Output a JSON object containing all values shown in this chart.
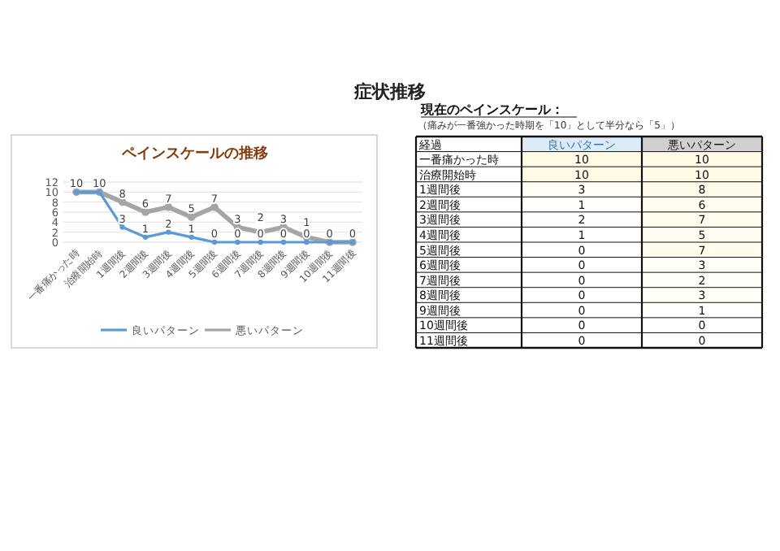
{
  "chart_data": [
    {
      "type": "line",
      "title": "症状推移",
      "subtitle": "ペインスケールの推移",
      "categories": [
        "一番痛かった時",
        "治療開始時",
        "1週間後",
        "2週間後",
        "3週間後",
        "4週間後",
        "5週間後",
        "6週間後",
        "7週間後",
        "8週間後",
        "9週間後",
        "10週間後",
        "11週間後"
      ],
      "series": [
        {
          "name": "良いパターン",
          "color": "#5b9bd5",
          "values": [
            10,
            10,
            3,
            1,
            2,
            1,
            0,
            0,
            0,
            0,
            0,
            0,
            0
          ],
          "value_labels": [
            "10",
            "10",
            "3",
            "1",
            "2",
            "1",
            "0",
            "0",
            "0",
            "0",
            "0",
            "0",
            "0"
          ]
        },
        {
          "name": "悪いパターン",
          "color": "#a5a5a5",
          "values": [
            10,
            10,
            8,
            6,
            7,
            5,
            7,
            3,
            2,
            3,
            1,
            0,
            0
          ],
          "value_labels": [
            null,
            null,
            "8",
            "6",
            "7",
            "5",
            "7",
            "3",
            "2",
            "3",
            "1",
            null,
            null
          ]
        }
      ],
      "ylim": [
        0,
        12
      ],
      "yticks": [
        0,
        2,
        4,
        6,
        8,
        10,
        12
      ],
      "grid": "y",
      "legend": "bottom",
      "marker": "circle",
      "line_style": "solid"
    },
    {
      "type": "heatmap",
      "title": "現在のペインスケール：",
      "subtitle": "（痛みが一番強かった時期を「10」として半分なら「5」）",
      "annotations": [
        "経過"
      ],
      "categories": [
        "良いパターン",
        "悪いパターン"
      ],
      "y_categories": [
        "一番痛かった時",
        "治療開始時",
        "1週間後",
        "2週間後",
        "3週間後",
        "4週間後",
        "5週間後",
        "6週間後",
        "7週間後",
        "8週間後",
        "9週間後",
        "10週間後",
        "11週間後"
      ],
      "cells": [
        [
          10,
          10
        ],
        [
          10,
          10
        ],
        [
          3,
          8
        ],
        [
          1,
          6
        ],
        [
          2,
          7
        ],
        [
          1,
          5
        ],
        [
          0,
          7
        ],
        [
          0,
          3
        ],
        [
          0,
          2
        ],
        [
          0,
          3
        ],
        [
          0,
          1
        ],
        [
          0,
          0
        ],
        [
          0,
          0
        ]
      ],
      "cell_labels": [
        [
          "10",
          "10"
        ],
        [
          "10",
          "10"
        ],
        [
          "3",
          "8"
        ],
        [
          "1",
          "6"
        ],
        [
          "2",
          "7"
        ],
        [
          "1",
          "5"
        ],
        [
          "0",
          "7"
        ],
        [
          "0",
          "3"
        ],
        [
          "0",
          "2"
        ],
        [
          "0",
          "3"
        ],
        [
          "0",
          "1"
        ],
        [
          "0",
          "0"
        ],
        [
          "0",
          "0"
        ]
      ]
    }
  ]
}
